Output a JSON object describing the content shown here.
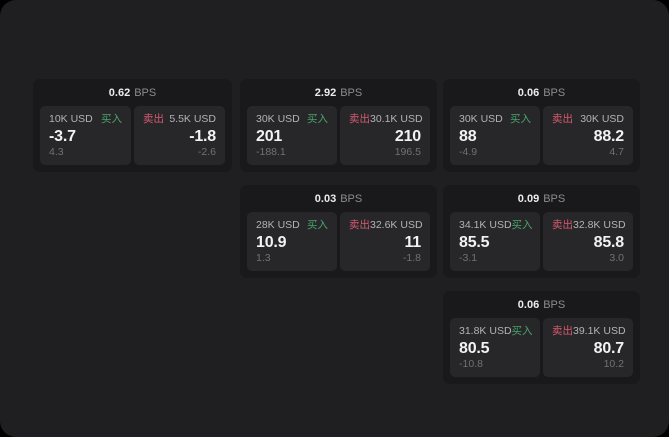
{
  "labels": {
    "bps_unit": "BPS",
    "buy": "买入",
    "sell": "卖出"
  },
  "colors": {
    "body_background": "#000000",
    "panel_background": "#1f1f21",
    "card_background": "#19191b",
    "tile_background": "#27272a",
    "buy_accent": "#4ba36c",
    "sell_accent": "#d65a6e",
    "primary_text": "#f2f2f3",
    "muted_text": "#717175",
    "label_text": "#b3b3b6"
  },
  "cards": [
    {
      "bps": "0.62",
      "buy": {
        "size": "10K USD",
        "price": "-3.7",
        "delta": "4.3"
      },
      "sell": {
        "size": "5.5K USD",
        "price": "-1.8",
        "delta": "-2.6"
      }
    },
    {
      "bps": "2.92",
      "buy": {
        "size": "30K USD",
        "price": "201",
        "delta": "-188.1"
      },
      "sell": {
        "size": "30.1K USD",
        "price": "210",
        "delta": "196.5"
      }
    },
    {
      "bps": "0.06",
      "buy": {
        "size": "30K USD",
        "price": "88",
        "delta": "-4.9"
      },
      "sell": {
        "size": "30K USD",
        "price": "88.2",
        "delta": "4.7"
      }
    },
    {
      "bps": "0.03",
      "buy": {
        "size": "28K USD",
        "price": "10.9",
        "delta": "1.3"
      },
      "sell": {
        "size": "32.6K USD",
        "price": "11",
        "delta": "-1.8"
      }
    },
    {
      "bps": "0.09",
      "buy": {
        "size": "34.1K USD",
        "price": "85.5",
        "delta": "-3.1"
      },
      "sell": {
        "size": "32.8K USD",
        "price": "85.8",
        "delta": "3.0"
      }
    },
    {
      "bps": "0.06",
      "buy": {
        "size": "31.8K USD",
        "price": "80.5",
        "delta": "-10.8"
      },
      "sell": {
        "size": "39.1K USD",
        "price": "80.7",
        "delta": "10.2"
      }
    }
  ]
}
